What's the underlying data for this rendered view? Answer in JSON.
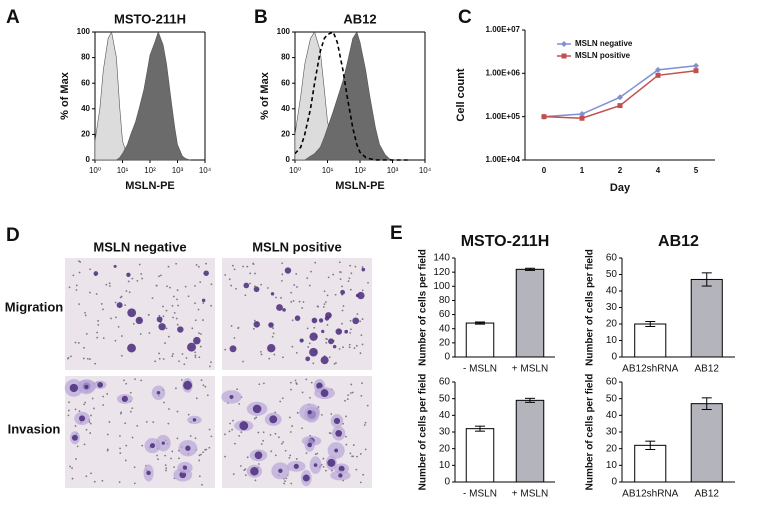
{
  "panel_labels": [
    "A",
    "B",
    "C",
    "D",
    "E"
  ],
  "micrographs": {
    "columns": [
      "MSLN negative",
      "MSLN positive"
    ],
    "rows": [
      "Migration",
      "Invasion"
    ]
  },
  "chart_data": [
    {
      "type": "area",
      "title": "MSTO-211H",
      "x_label": "MSLN-PE",
      "y_label": "% of Max",
      "xscale": "log",
      "xlim": [
        1,
        10000
      ],
      "xticks": [
        {
          "value": 1,
          "label": "10⁰"
        },
        {
          "value": 10,
          "label": "10¹"
        },
        {
          "value": 100,
          "label": "10²"
        },
        {
          "value": 1000,
          "label": "10³"
        },
        {
          "value": 10000,
          "label": "10⁴"
        }
      ],
      "ylim": [
        0,
        100
      ],
      "yticks": [
        0,
        20,
        40,
        60,
        80,
        100
      ],
      "x": [
        1,
        1.5,
        2,
        3,
        4,
        6,
        8,
        10,
        15,
        20,
        30,
        40,
        60,
        80,
        100,
        150,
        200,
        300,
        400,
        600,
        800,
        1000,
        1500,
        2000,
        3000
      ],
      "series": [
        {
          "color": "#dcdcdc",
          "values": [
            15,
            40,
            70,
            95,
            100,
            80,
            40,
            15,
            3,
            1,
            0,
            0,
            0,
            0,
            0,
            0,
            0,
            0,
            0,
            0,
            0,
            0,
            0,
            0,
            0
          ]
        },
        {
          "color": "#6b6b6b",
          "values": [
            0,
            0,
            0,
            0,
            0,
            0,
            2,
            5,
            12,
            20,
            30,
            40,
            55,
            70,
            82,
            92,
            100,
            90,
            75,
            45,
            25,
            12,
            3,
            1,
            0
          ]
        }
      ]
    },
    {
      "type": "area",
      "title": "AB12",
      "x_label": "MSLN-PE",
      "y_label": "% of Max",
      "xscale": "log",
      "xlim": [
        1,
        10000
      ],
      "xticks": [
        {
          "value": 1,
          "label": "10⁰"
        },
        {
          "value": 10,
          "label": "10¹"
        },
        {
          "value": 100,
          "label": "10²"
        },
        {
          "value": 1000,
          "label": "10³"
        },
        {
          "value": 10000,
          "label": "10⁴"
        }
      ],
      "ylim": [
        0,
        100
      ],
      "yticks": [
        0,
        20,
        40,
        60,
        80,
        100
      ],
      "x": [
        1,
        1.5,
        2,
        3,
        4,
        6,
        8,
        10,
        15,
        20,
        30,
        40,
        60,
        80,
        100,
        150,
        200,
        300,
        400,
        600,
        800,
        1000,
        1500,
        2000,
        3000
      ],
      "series": [
        {
          "color": "#dcdcdc",
          "values": [
            20,
            50,
            75,
            95,
            100,
            85,
            55,
            30,
            10,
            4,
            1,
            0,
            0,
            0,
            0,
            0,
            0,
            0,
            0,
            0,
            0,
            0,
            0,
            0,
            0
          ]
        },
        {
          "color": "#6b6b6b",
          "values": [
            0,
            0,
            0,
            3,
            5,
            10,
            18,
            25,
            38,
            48,
            62,
            75,
            95,
            100,
            92,
            70,
            50,
            25,
            12,
            4,
            1,
            0,
            0,
            0,
            0
          ]
        },
        {
          "color": "#000000",
          "dashed": true,
          "filled": false,
          "values": [
            5,
            10,
            20,
            40,
            60,
            85,
            95,
            98,
            100,
            92,
            70,
            50,
            25,
            12,
            6,
            2,
            1,
            0,
            0,
            0,
            0,
            0,
            0,
            0,
            0
          ]
        }
      ]
    },
    {
      "type": "line",
      "x_label": "Day",
      "y_label": "Cell count",
      "yscale": "log",
      "categories": [
        "0",
        "1",
        "2",
        "4",
        "5"
      ],
      "ylim": [
        10000,
        10000000
      ],
      "yticks": [
        {
          "value": 10000,
          "label": "1.00E+04"
        },
        {
          "value": 100000,
          "label": "1.00E+05"
        },
        {
          "value": 1000000,
          "label": "1.00E+06"
        },
        {
          "value": 10000000,
          "label": "1.00E+07"
        }
      ],
      "series": [
        {
          "name": "MSLN negative",
          "color": "#8090d0",
          "marker": "diamond",
          "values": [
            100000,
            115000,
            280000,
            1200000,
            1500000
          ]
        },
        {
          "name": "MSLN positive",
          "color": "#c0504d",
          "marker": "square",
          "values": [
            100000,
            92000,
            180000,
            900000,
            1150000
          ]
        }
      ]
    },
    {
      "type": "bar",
      "title": "MSTO-211H",
      "y_label": "Number of cells per field",
      "categories": [
        "- MSLN",
        "+ MSLN"
      ],
      "values": [
        48,
        124
      ],
      "errors": [
        1.5,
        1.5
      ],
      "colors": [
        "#ffffff",
        "#b4b4bc"
      ],
      "ylim": [
        0,
        140
      ],
      "yticks": [
        0,
        20,
        40,
        60,
        80,
        100,
        120,
        140
      ]
    },
    {
      "type": "bar",
      "title": "AB12",
      "y_label": "Number of cells per field",
      "categories": [
        "AB12shRNA",
        "AB12"
      ],
      "values": [
        20,
        47
      ],
      "errors": [
        1.5,
        4
      ],
      "colors": [
        "#ffffff",
        "#b4b4bc"
      ],
      "ylim": [
        0,
        60
      ],
      "yticks": [
        0,
        10,
        20,
        30,
        40,
        50,
        60
      ]
    },
    {
      "type": "bar",
      "y_label": "Number of cells per field",
      "categories": [
        "- MSLN",
        "+ MSLN"
      ],
      "values": [
        32,
        49
      ],
      "errors": [
        1.5,
        1.2
      ],
      "colors": [
        "#ffffff",
        "#b4b4bc"
      ],
      "ylim": [
        0,
        60
      ],
      "yticks": [
        0,
        10,
        20,
        30,
        40,
        50,
        60
      ]
    },
    {
      "type": "bar",
      "y_label": "Number of cells per field",
      "categories": [
        "AB12shRNA",
        "AB12"
      ],
      "values": [
        22,
        47
      ],
      "errors": [
        2.5,
        3.5
      ],
      "colors": [
        "#ffffff",
        "#b4b4bc"
      ],
      "ylim": [
        0,
        60
      ],
      "yticks": [
        0,
        10,
        20,
        30,
        40,
        50,
        60
      ]
    }
  ]
}
